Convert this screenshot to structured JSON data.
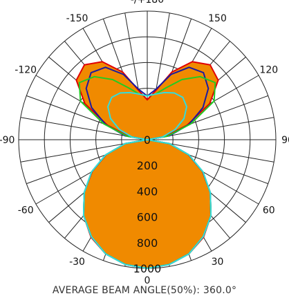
{
  "chart_data": {
    "type": "polar",
    "angle_labels": [
      {
        "deg": 180,
        "text": "-/+180"
      },
      {
        "deg": 150,
        "text": "150"
      },
      {
        "deg": 120,
        "text": "120"
      },
      {
        "deg": 90,
        "text": "90"
      },
      {
        "deg": 60,
        "text": "60"
      },
      {
        "deg": 30,
        "text": "30"
      },
      {
        "deg": 0,
        "text": "0"
      },
      {
        "deg": -30,
        "text": "-30"
      },
      {
        "deg": -60,
        "text": "-60"
      },
      {
        "deg": -90,
        "text": "-90"
      },
      {
        "deg": -120,
        "text": "-120"
      },
      {
        "deg": -150,
        "text": "-150"
      }
    ],
    "radial_ticks": [
      0,
      200,
      400,
      600,
      800,
      1000
    ],
    "r_max": 1000,
    "grid": true,
    "series": [
      {
        "color": "#ff7f00",
        "fill": "#f08a00",
        "stroke": "#e00000",
        "angles": [
          0,
          10,
          20,
          30,
          40,
          50,
          60,
          70,
          80,
          90,
          100,
          110,
          120,
          130,
          140,
          150,
          160,
          170,
          180
        ],
        "values": [
          1000,
          985,
          945,
          875,
          770,
          640,
          495,
          340,
          175,
          0,
          140,
          330,
          560,
          720,
          760,
          700,
          560,
          390,
          310
        ]
      },
      {
        "color": "#1a1aa0",
        "angles": [
          0,
          10,
          20,
          30,
          40,
          50,
          60,
          70,
          80,
          90,
          100,
          110,
          120,
          130,
          140,
          150,
          160,
          170,
          180
        ],
        "values": [
          1000,
          985,
          945,
          870,
          770,
          640,
          500,
          345,
          175,
          0,
          175,
          345,
          500,
          620,
          680,
          650,
          540,
          400,
          340
        ]
      },
      {
        "color": "#22cc22",
        "angles": [
          0,
          10,
          20,
          30,
          40,
          50,
          60,
          70,
          80,
          90,
          100,
          110,
          120,
          130,
          140,
          150,
          160,
          170,
          180
        ],
        "values": [
          1000,
          985,
          945,
          870,
          770,
          640,
          500,
          345,
          175,
          0,
          160,
          360,
          600,
          690,
          640,
          540,
          430,
          360,
          340
        ]
      },
      {
        "color": "#33dddd",
        "angles": [
          0,
          10,
          20,
          30,
          40,
          50,
          60,
          70,
          80,
          90,
          100,
          110,
          120,
          130,
          140,
          150,
          160,
          170,
          180
        ],
        "values": [
          1000,
          985,
          945,
          870,
          770,
          640,
          500,
          345,
          175,
          0,
          120,
          230,
          330,
          400,
          430,
          420,
          390,
          360,
          340
        ]
      }
    ]
  },
  "footer": "AVERAGE BEAM ANGLE(50%): 360.0°"
}
